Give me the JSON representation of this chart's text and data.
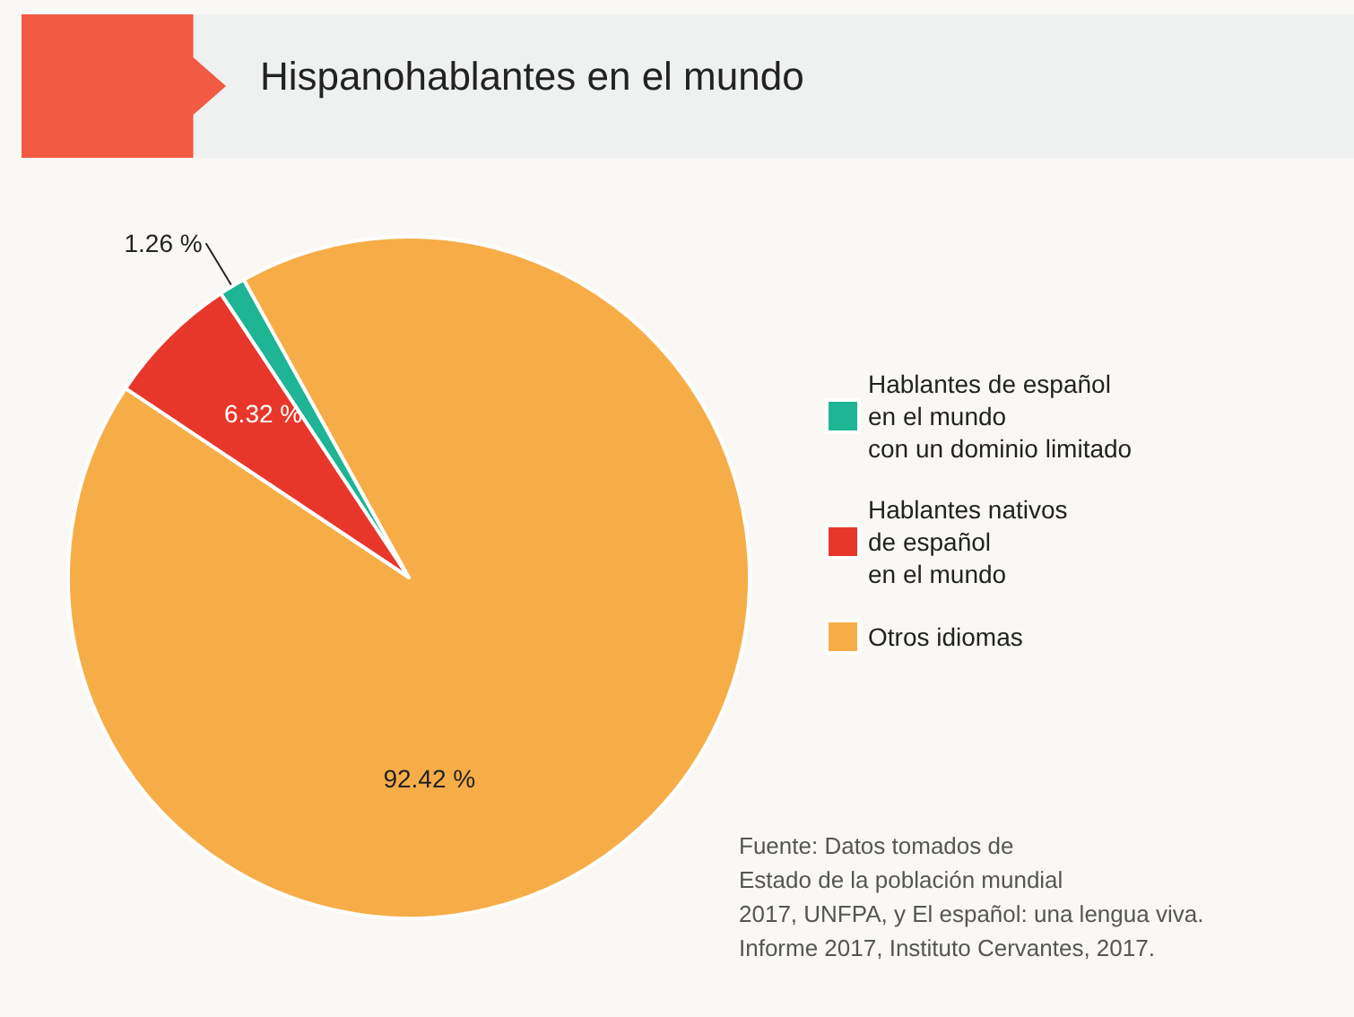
{
  "chart_data": {
    "type": "pie",
    "title": "Hispanohablantes en el mundo",
    "categories": [
      "Hablantes de español\nen el mundo\ncon un dominio limitado",
      "Hablantes nativos\nde español\nen el mundo",
      "Otros idiomas"
    ],
    "values": [
      1.26,
      6.32,
      92.42
    ],
    "colors": [
      "#1db594",
      "#e8372a",
      "#f7ad47"
    ],
    "value_labels": [
      "1.26 %",
      "6.32 %",
      "92.42 %"
    ],
    "legend": "right",
    "annotations": [
      "Fuente: Datos tomados de\nEstado de la población mundial\n2017, UNFPA, y El español: una lengua viva.\nInforme 2017, Instituto Cervantes, 2017."
    ]
  }
}
